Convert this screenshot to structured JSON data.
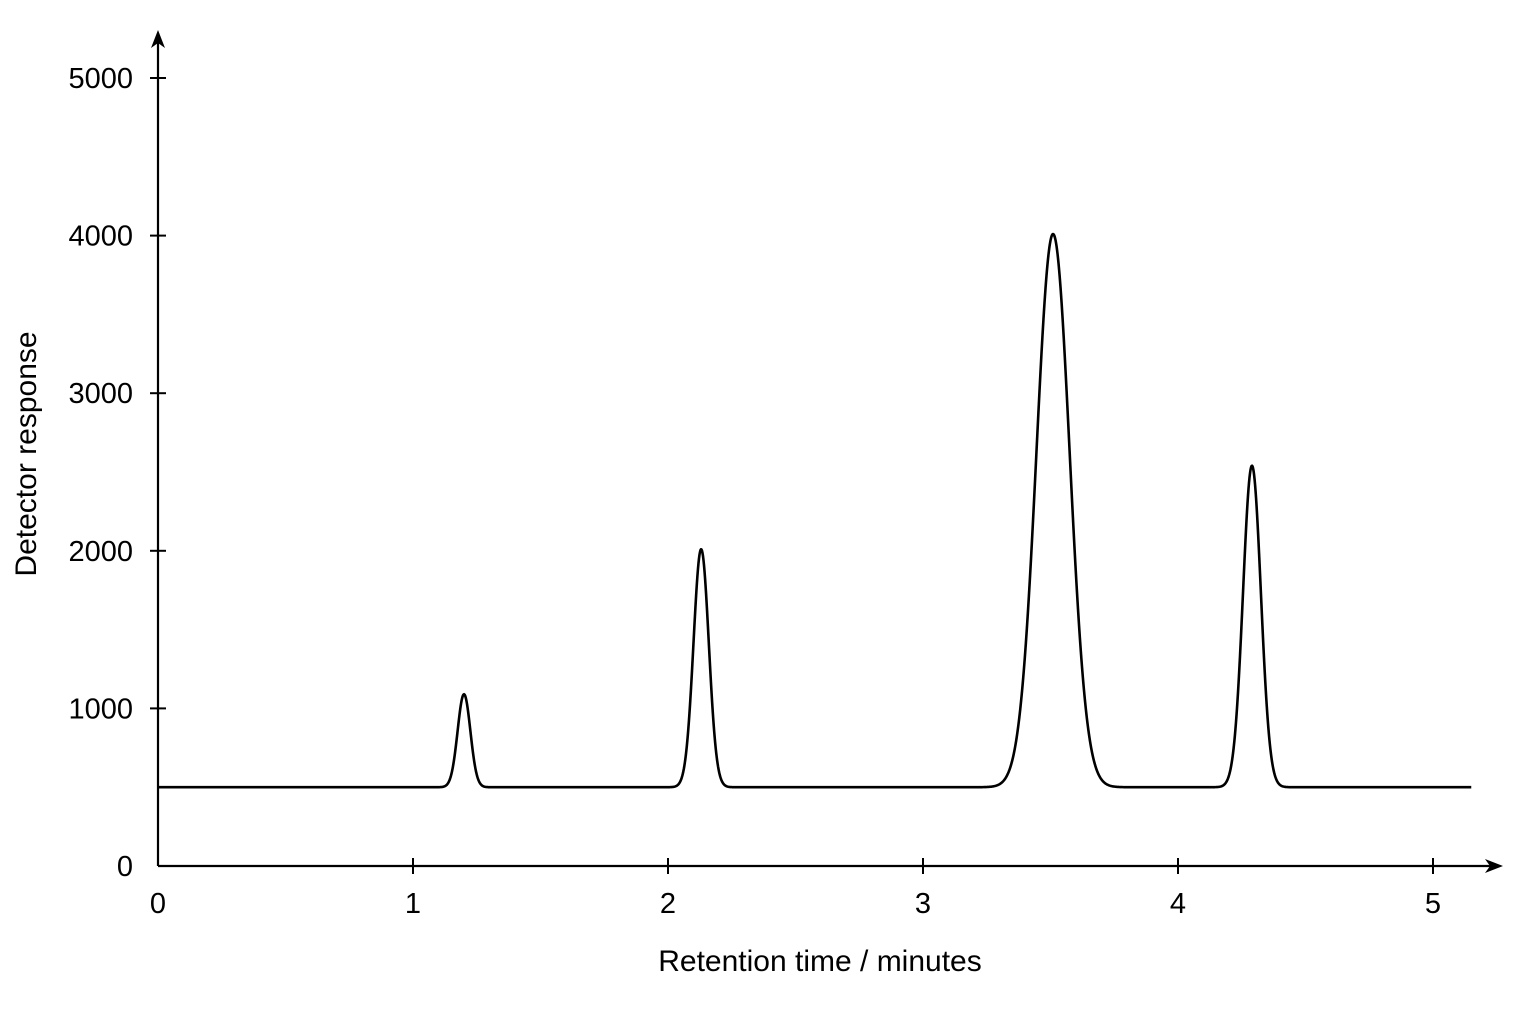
{
  "chart_data": {
    "type": "line",
    "title": "",
    "xlabel": "Retention time / minutes",
    "ylabel": "Detector response",
    "xlim": [
      0,
      5.15
    ],
    "ylim": [
      0,
      5000
    ],
    "x_ticks": [
      0,
      1,
      2,
      3,
      4,
      5
    ],
    "y_ticks": [
      0,
      1000,
      2000,
      3000,
      4000,
      5000
    ],
    "grid": false,
    "legend": "none",
    "baseline": 500,
    "peaks": [
      {
        "retention_time": 1.2,
        "response": 1090,
        "width_sd": 0.025
      },
      {
        "retention_time": 2.13,
        "response": 2010,
        "width_sd": 0.03
      },
      {
        "retention_time": 3.51,
        "response": 4010,
        "width_sd": 0.065
      },
      {
        "retention_time": 4.29,
        "response": 2540,
        "width_sd": 0.035
      }
    ],
    "series": [
      {
        "x_start": 0,
        "x_end": 5.15,
        "color": "#000000"
      }
    ]
  }
}
